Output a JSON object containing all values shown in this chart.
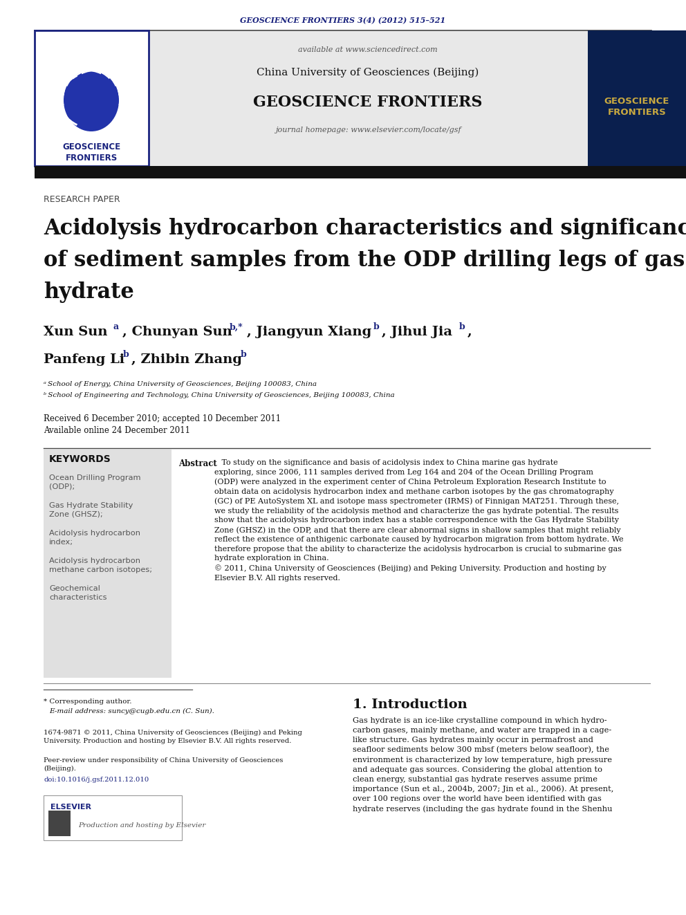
{
  "journal_header_text": "GEOSCIENCE FRONTIERS 3(4) (2012) 515–521",
  "journal_header_color": "#1a237e",
  "available_text": "available at www.sciencedirect.com",
  "university_text": "China University of Geosciences (Beijing)",
  "journal_name_center": "GEOSCIENCE FRONTIERS",
  "journal_homepage": "journal homepage: www.elsevier.com/locate/gsf",
  "section_label": "RESEARCH PAPER",
  "title_line1": "Acidolysis hydrocarbon characteristics and significance",
  "title_line2": "of sediment samples from the ODP drilling legs of gas",
  "title_line3": "hydrate",
  "affil_a": "ᵃ School of Energy, China University of Geosciences, Beijing 100083, China",
  "affil_b": "ᵇ School of Engineering and Technology, China University of Geosciences, Beijing 100083, China",
  "received": "Received 6 December 2010; accepted 10 December 2011",
  "available_online": "Available online 24 December 2011",
  "keywords_title": "KEYWORDS",
  "kw1": "Ocean Drilling Program\n(ODP);",
  "kw2": "Gas Hydrate Stability\nZone (GHSZ);",
  "kw3": "Acidolysis hydrocarbon\nindex;",
  "kw4": "Acidolysis hydrocarbon\nmethane carbon isotopes;",
  "kw5": "Geochemical\ncharacteristics",
  "abstract_label": "Abstract",
  "abstract_body": "   To study on the significance and basis of acidolysis index to China marine gas hydrate\nexploring, since 2006, 111 samples derived from Leg 164 and 204 of the Ocean Drilling Program\n(ODP) were analyzed in the experiment center of China Petroleum Exploration Research Institute to\nobtain data on acidolysis hydrocarbon index and methane carbon isotopes by the gas chromatography\n(GC) of PE AutoSystem XL and isotope mass spectrometer (IRMS) of Finnigan MAT251. Through these,\nwe study the reliability of the acidolysis method and characterize the gas hydrate potential. The results\nshow that the acidolysis hydrocarbon index has a stable correspondence with the Gas Hydrate Stability\nZone (GHSZ) in the ODP, and that there are clear abnormal signs in shallow samples that might reliably\nreflect the existence of anthigenic carbonate caused by hydrocarbon migration from bottom hydrate. We\ntherefore propose that the ability to characterize the acidolysis hydrocarbon is crucial to submarine gas\nhydrate exploration in China.\n© 2011, China University of Geosciences (Beijing) and Peking University. Production and hosting by\nElsevier B.V. All rights reserved.",
  "corresponding_note": "* Corresponding author.",
  "email_note": "   E-mail address: suncy@cugb.edu.cn (C. Sun).",
  "issn_line1": "1674-9871 © 2011, China University of Geosciences (Beijing) and Peking",
  "issn_line2": "University. Production and hosting by Elsevier B.V. All rights reserved.",
  "peer_review_line1": "Peer-review under responsibility of China University of Geosciences",
  "peer_review_line2": "(Beijing).",
  "doi_note": "doi:10.1016/j.gsf.2011.12.010",
  "prod_hosting": "Production and hosting by Elsevier",
  "intro_title": "1. Introduction",
  "intro_line1": "Gas hydrate is an ice-like crystalline compound in which hydro-",
  "intro_line2": "carbon gases, mainly methane, and water are trapped in a cage-",
  "intro_line3": "like structure. Gas hydrates mainly occur in permafrost and",
  "intro_line4": "seafloor sediments below 300 mbsf (meters below seafloor), the",
  "intro_line5": "environment is characterized by low temperature, high pressure",
  "intro_line6": "and adequate gas sources. Considering the global attention to",
  "intro_line7": "clean energy, substantial gas hydrate reserves assume prime",
  "intro_line8": "importance (Sun et al., 2004b, 2007; Jin et al., 2006). At present,",
  "intro_line9": "over 100 regions over the world have been identified with gas",
  "intro_line10": "hydrate reserves (including the gas hydrate found in the Shenhu",
  "bg_color": "#ffffff",
  "header_bg": "#e8e8e8",
  "black_bar_color": "#111111",
  "keyword_bg": "#e0e0e0",
  "cover_bg": "#0a1f4e",
  "logo_border": "#1a237e",
  "dark_blue": "#1a237e",
  "text_color": "#111111",
  "link_color": "#1a237e",
  "gray_text": "#555555"
}
